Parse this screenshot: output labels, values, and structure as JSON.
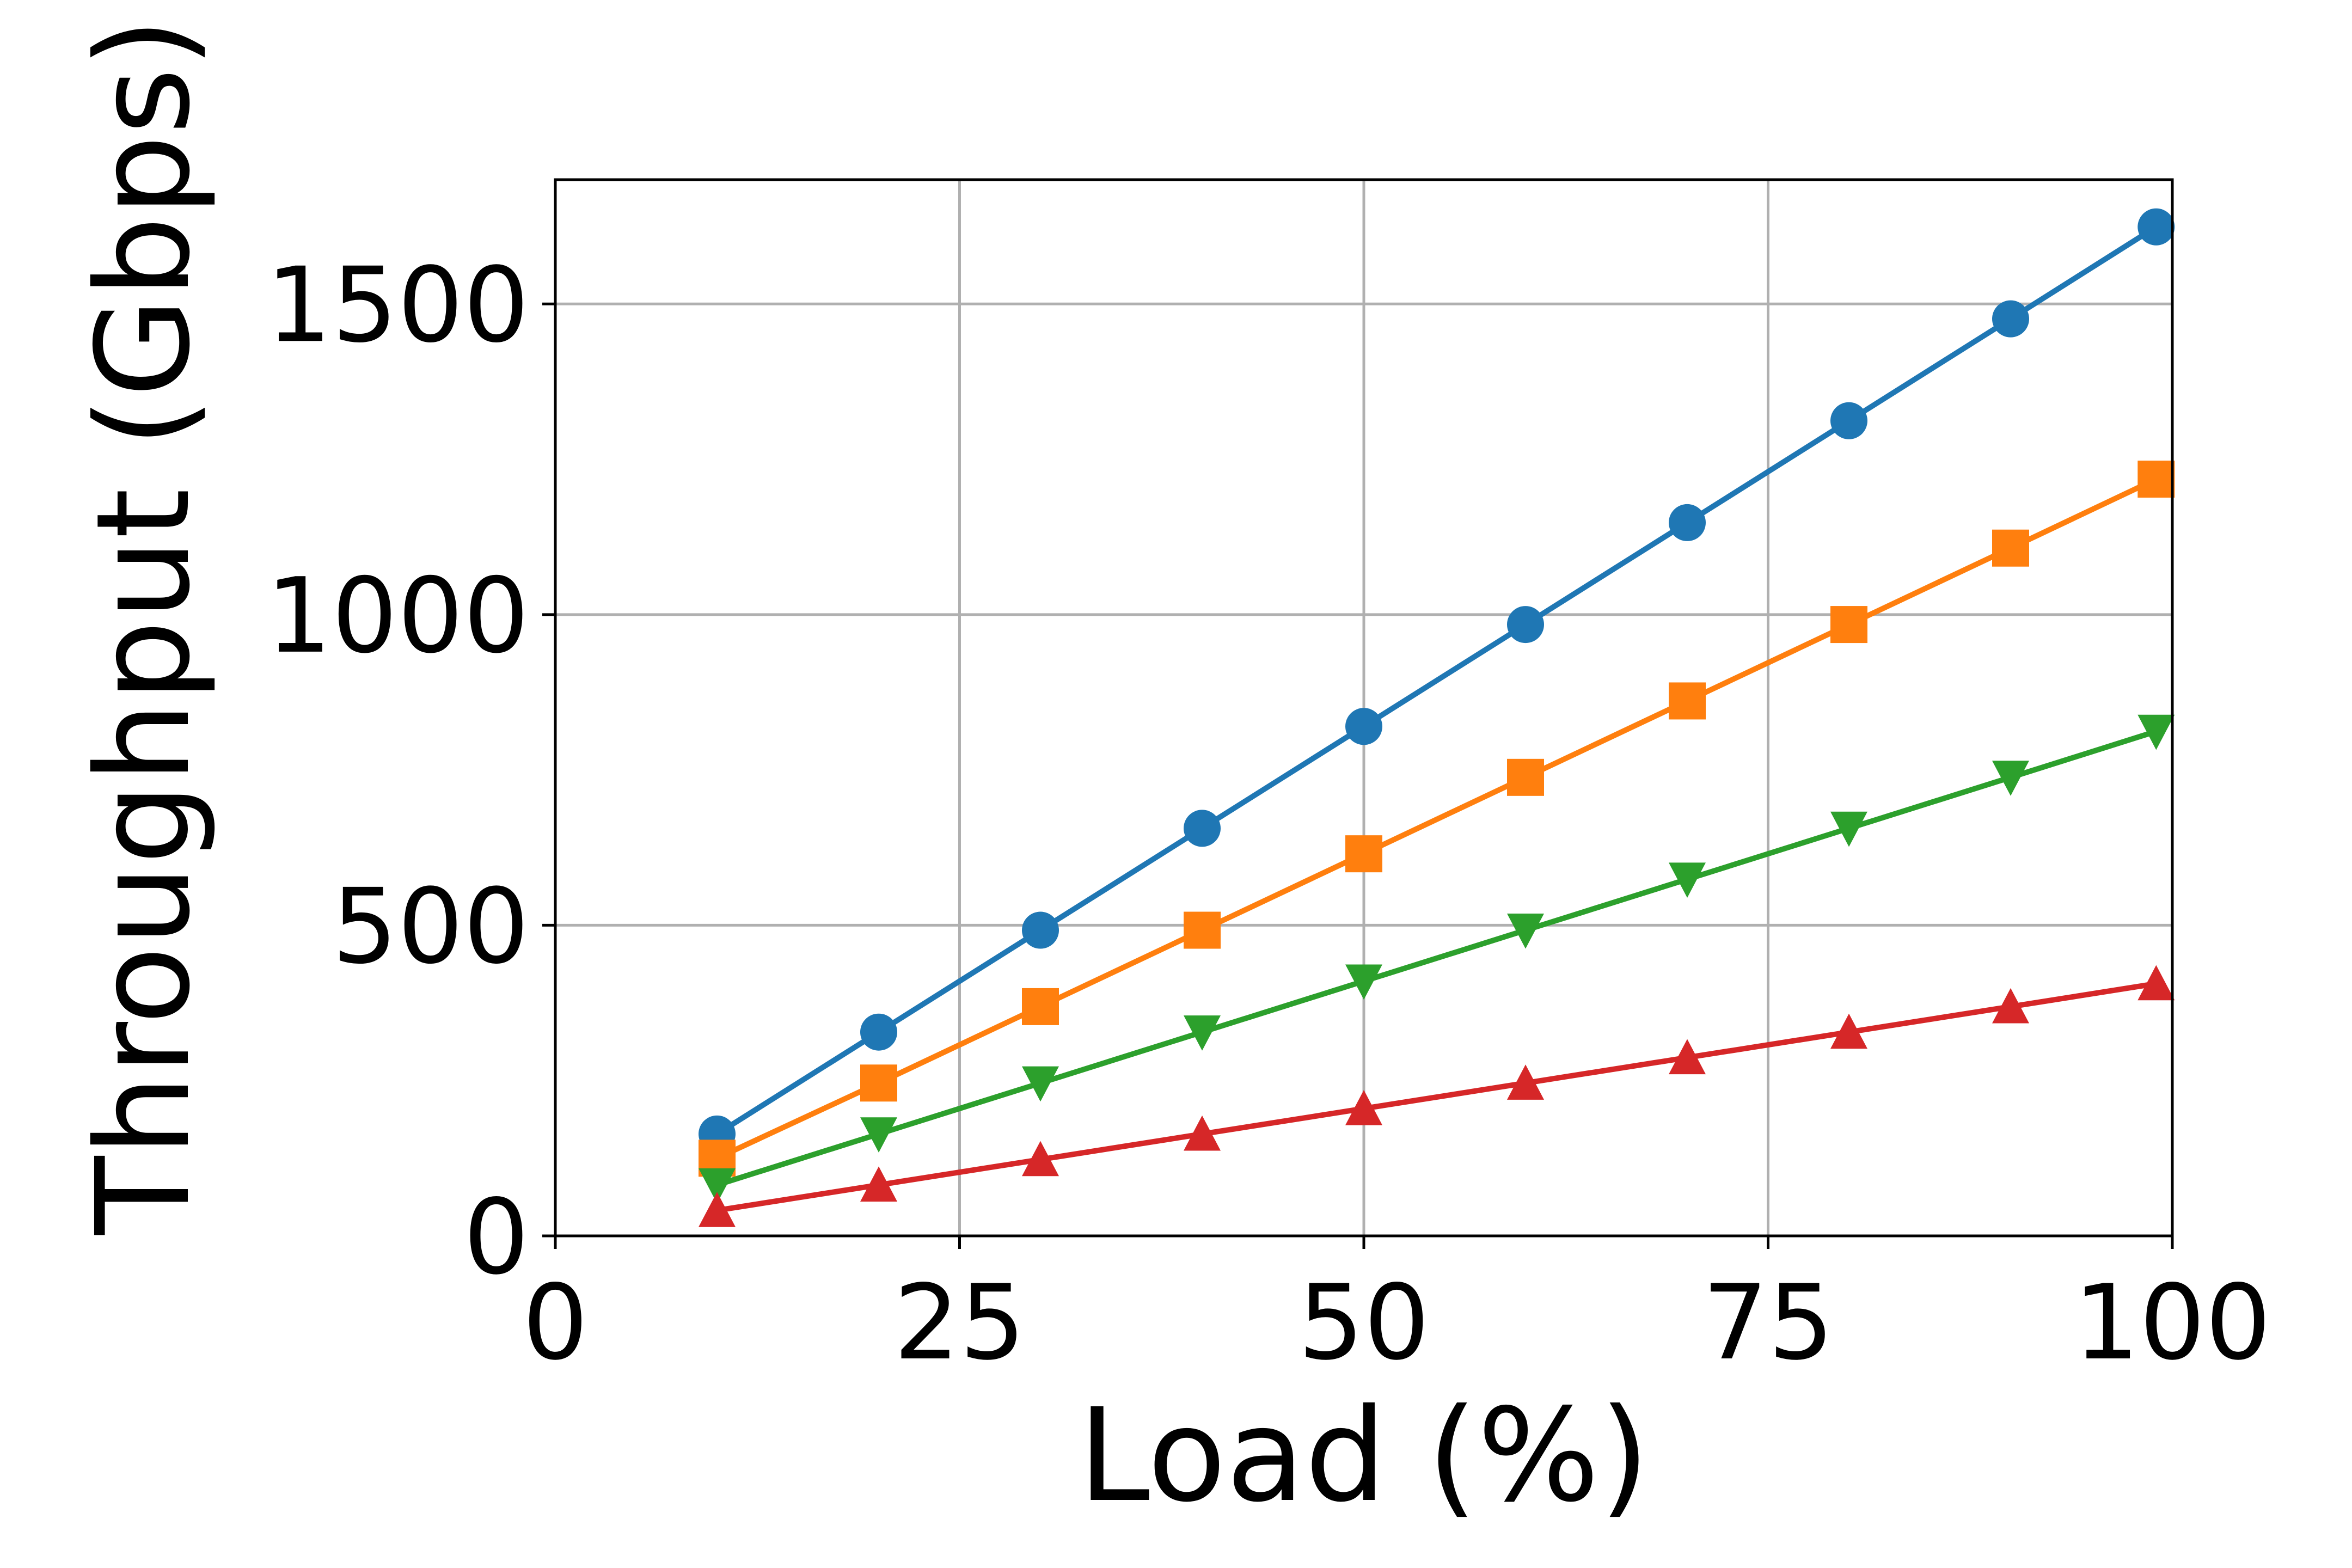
{
  "chart_data": {
    "type": "line",
    "title": "",
    "xlabel": "Load (%)",
    "ylabel": "Throughput (Gbps)",
    "xlim": [
      0,
      100
    ],
    "ylim": [
      0,
      1700
    ],
    "xticks": [
      0,
      25,
      50,
      75,
      100
    ],
    "yticks": [
      0,
      500,
      1000,
      1500
    ],
    "grid": true,
    "legend": "none",
    "x": [
      10,
      20,
      30,
      40,
      50,
      60,
      70,
      80,
      90,
      99
    ],
    "series": [
      {
        "marker": "circle",
        "color": "#1f77b4",
        "values": [
          164,
          328,
          492,
          656,
          820,
          984,
          1148,
          1312,
          1476,
          1624
        ]
      },
      {
        "marker": "square",
        "color": "#ff7f0e",
        "values": [
          125,
          246,
          369,
          492,
          615,
          738,
          861,
          984,
          1107,
          1218
        ]
      },
      {
        "marker": "triangle-down",
        "color": "#2ca02c",
        "values": [
          82,
          164,
          246,
          328,
          410,
          492,
          574,
          656,
          738,
          812
        ]
      },
      {
        "marker": "triangle-up",
        "color": "#d62728",
        "values": [
          41,
          82,
          123,
          164,
          205,
          246,
          287,
          328,
          369,
          406
        ]
      }
    ]
  }
}
